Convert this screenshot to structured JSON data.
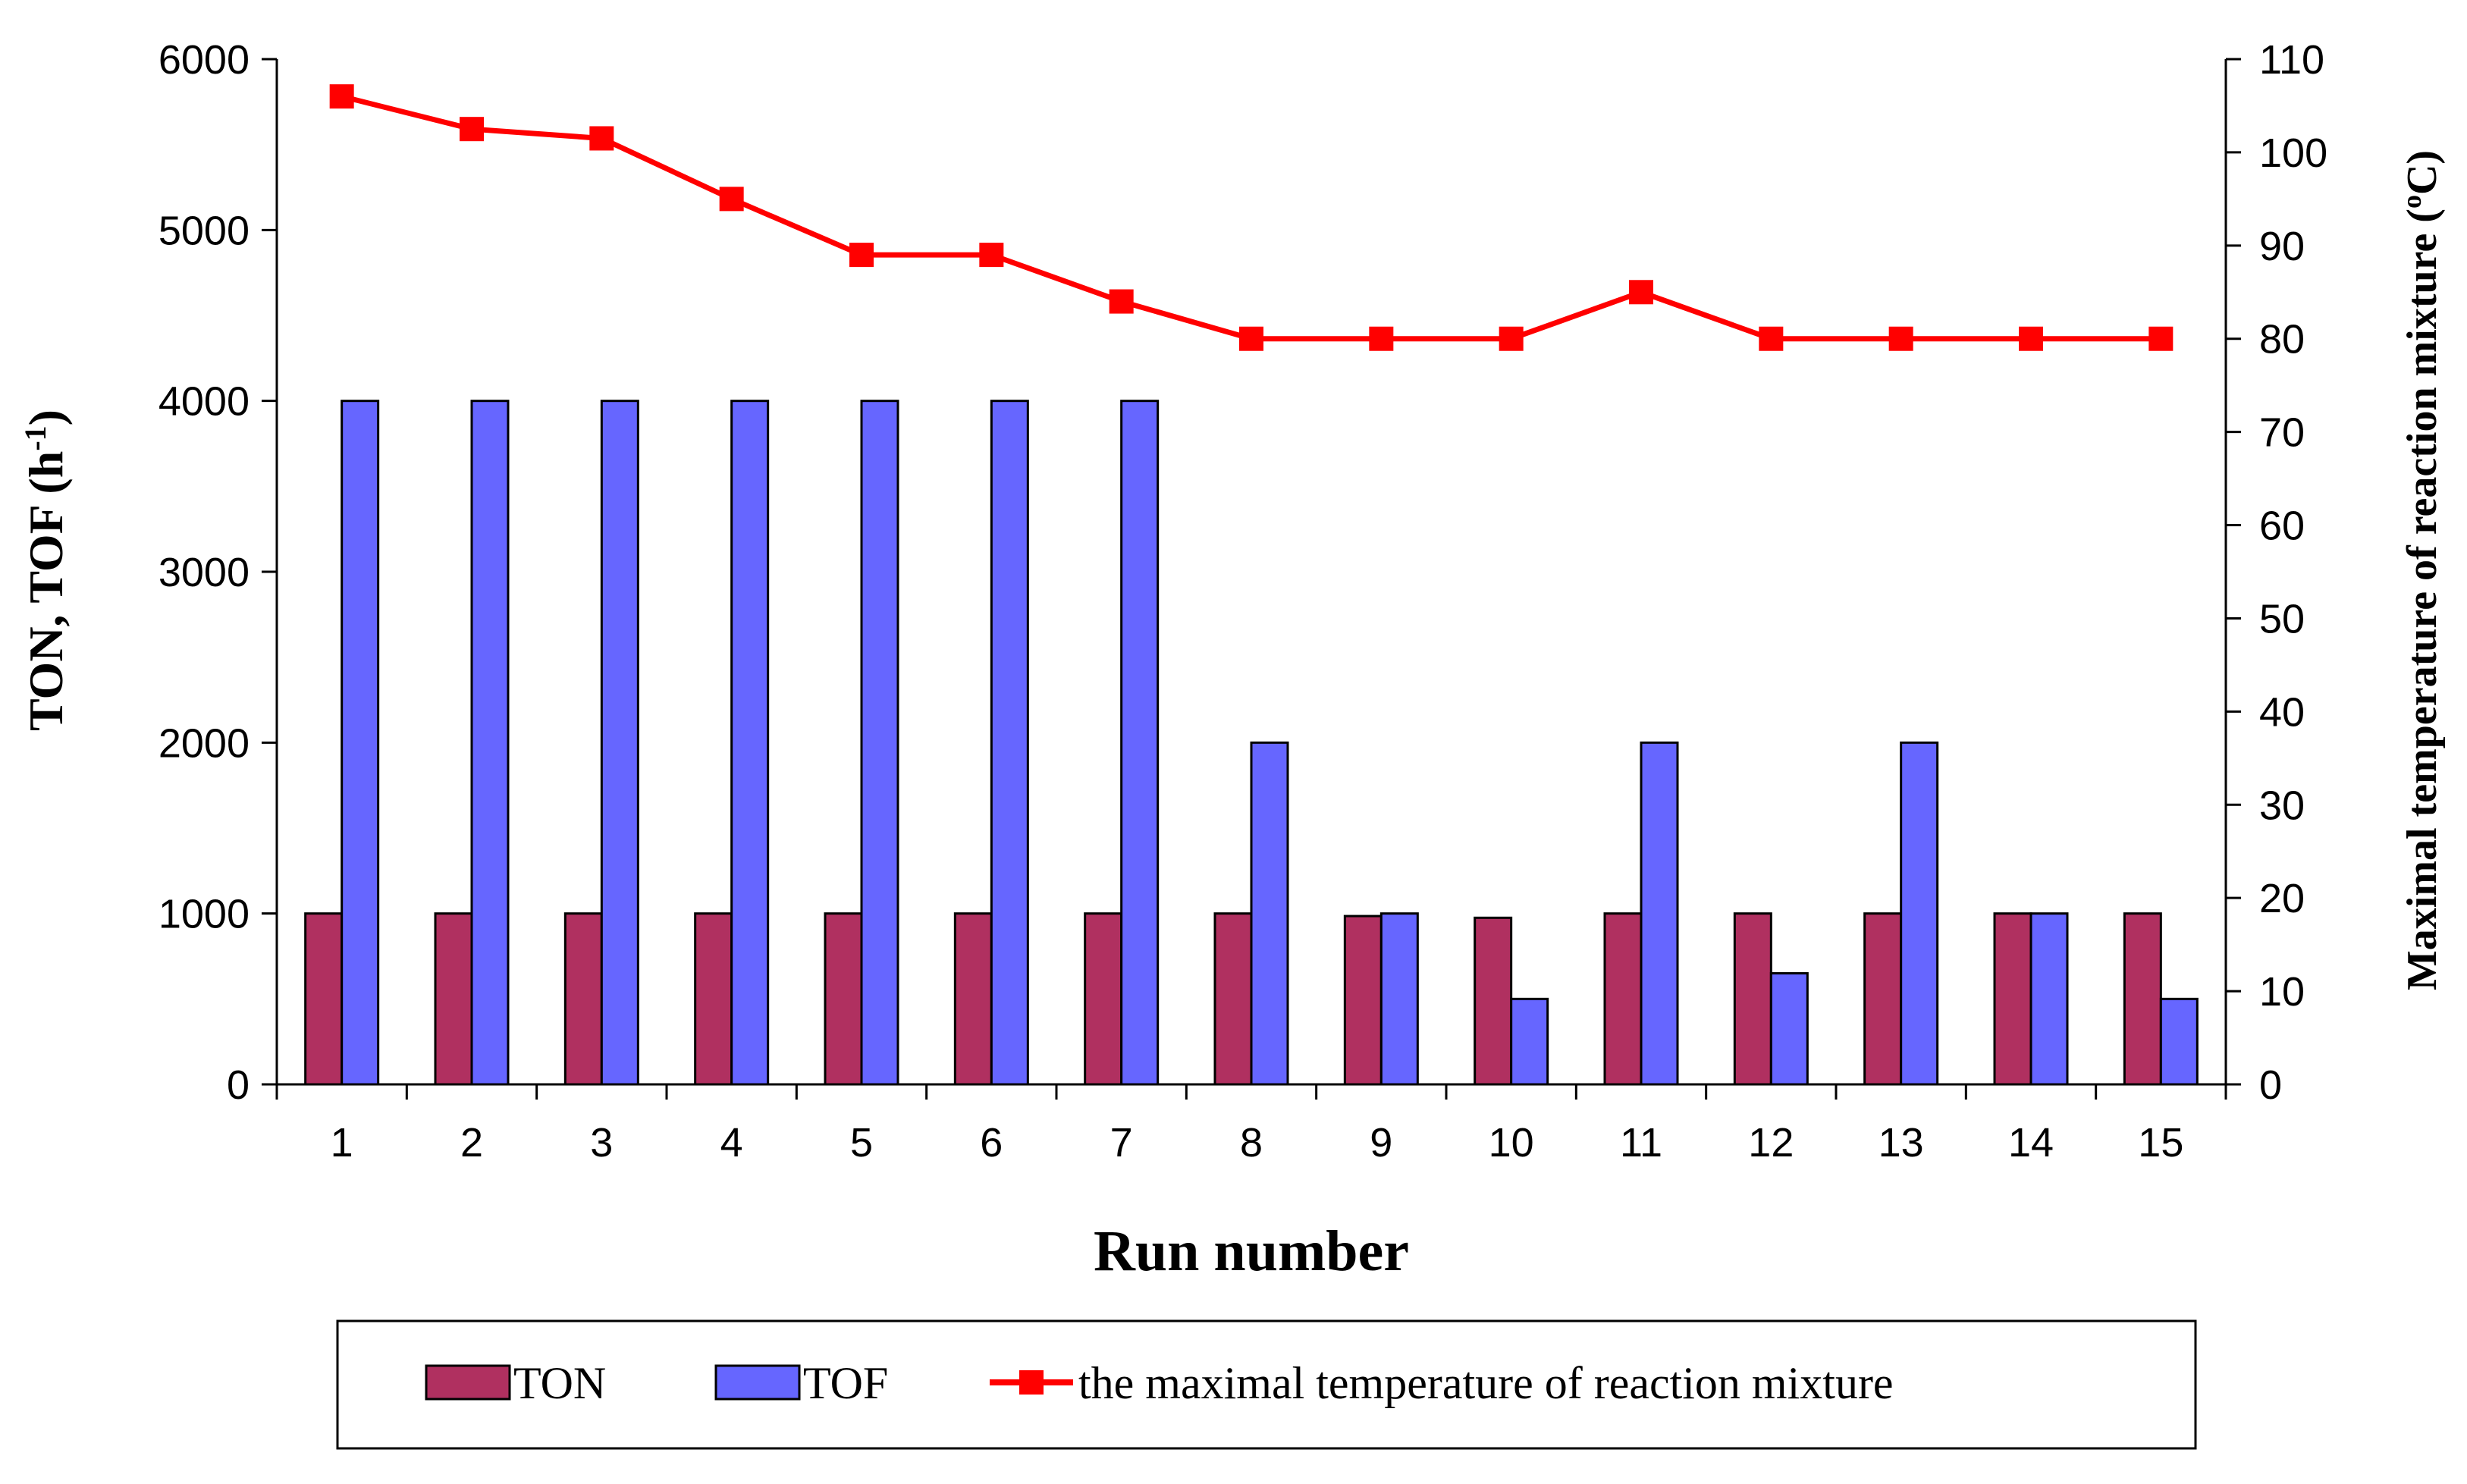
{
  "chart_data": {
    "type": "bar",
    "categories": [
      "1",
      "2",
      "3",
      "4",
      "5",
      "6",
      "7",
      "8",
      "9",
      "10",
      "11",
      "12",
      "13",
      "14",
      "15"
    ],
    "series": [
      {
        "name": "TON",
        "axis": "left",
        "kind": "bar",
        "color": "#B03060",
        "values": [
          1000,
          1000,
          1000,
          1000,
          1000,
          1000,
          1000,
          1000,
          985,
          975,
          1000,
          1000,
          1000,
          1000,
          1000
        ]
      },
      {
        "name": "TOF",
        "axis": "left",
        "kind": "bar",
        "color": "#6666FF",
        "values": [
          4000,
          4000,
          4000,
          4000,
          4000,
          4000,
          4000,
          2000,
          1000,
          500,
          2000,
          650,
          2000,
          1000,
          500
        ]
      },
      {
        "name": "the maximal temperature of reaction mixture",
        "axis": "right",
        "kind": "line",
        "color": "#FF0000",
        "values": [
          106,
          102.5,
          101.5,
          95,
          89,
          89,
          84,
          80,
          80,
          80,
          85,
          80,
          80,
          80,
          80
        ]
      }
    ],
    "xlabel": "Run number",
    "ylabel_left": "TON, TOF (h",
    "ylabel_left_sup": "-1",
    "ylabel_left_end": ")",
    "ylabel_right": "Maximal temperature of reaction mixture (",
    "ylabel_right_sup": "o",
    "ylabel_right_end": "C)",
    "ylim_left": [
      0,
      6000
    ],
    "yticks_left": [
      "0",
      "1000",
      "2000",
      "3000",
      "4000",
      "5000",
      "6000"
    ],
    "ylim_right": [
      0,
      110
    ],
    "yticks_right": [
      "0",
      "10",
      "20",
      "30",
      "40",
      "50",
      "60",
      "70",
      "80",
      "90",
      "100",
      "110"
    ],
    "legend": [
      "TON",
      "TOF",
      "the maximal temperature of reaction mixture"
    ],
    "legend_position": "bottom",
    "grid": false
  }
}
